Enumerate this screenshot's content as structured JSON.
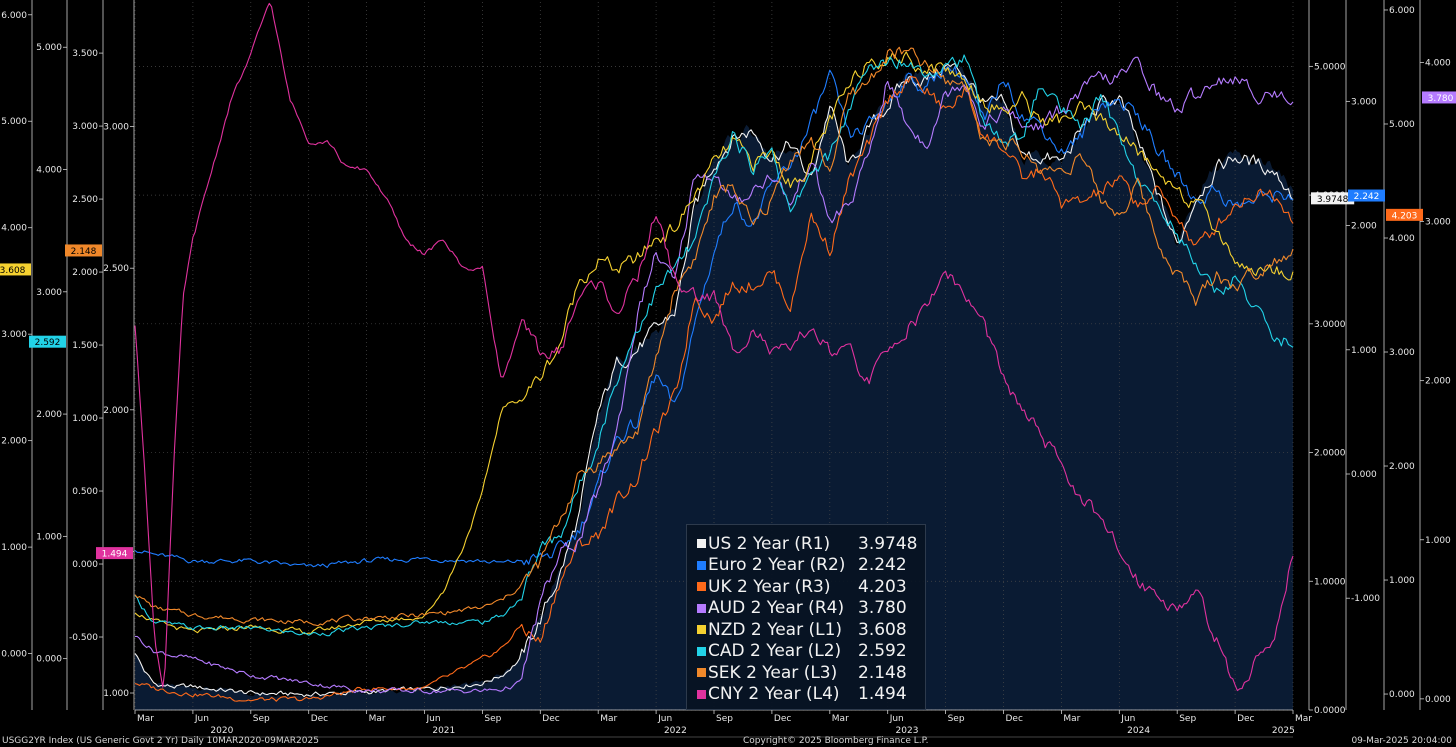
{
  "colors": {
    "background": "#000000",
    "plot_fill": "#0a1b33",
    "grid": "#4a4a4a"
  },
  "footer": {
    "left": "USGG2YR Index (US Generic Govt 2 Yr)  Daily 10MAR2020-09MAR2025",
    "center": "Copyright© 2025 Bloomberg Finance L.P.",
    "right": "09-Mar-2025 20:04:00"
  },
  "chart_data": {
    "type": "line",
    "x_axis": {
      "month_ticks": [
        {
          "label": "Mar",
          "t": 0
        },
        {
          "label": "Jun",
          "t": 3
        },
        {
          "label": "Sep",
          "t": 6
        },
        {
          "label": "Dec",
          "t": 9
        },
        {
          "label": "Mar",
          "t": 12
        },
        {
          "label": "Jun",
          "t": 15
        },
        {
          "label": "Sep",
          "t": 18
        },
        {
          "label": "Dec",
          "t": 21
        },
        {
          "label": "Mar",
          "t": 24
        },
        {
          "label": "Jun",
          "t": 27
        },
        {
          "label": "Sep",
          "t": 30
        },
        {
          "label": "Dec",
          "t": 33
        },
        {
          "label": "Mar",
          "t": 36
        },
        {
          "label": "Jun",
          "t": 39
        },
        {
          "label": "Sep",
          "t": 42
        },
        {
          "label": "Dec",
          "t": 45
        },
        {
          "label": "Mar",
          "t": 48
        },
        {
          "label": "Jun",
          "t": 51
        },
        {
          "label": "Sep",
          "t": 54
        },
        {
          "label": "Dec",
          "t": 57
        },
        {
          "label": "Mar",
          "t": 60
        }
      ],
      "year_ticks": [
        {
          "label": "2020",
          "t": 4.5
        },
        {
          "label": "2021",
          "t": 16
        },
        {
          "label": "2022",
          "t": 28
        },
        {
          "label": "2023",
          "t": 40
        },
        {
          "label": "2024",
          "t": 52
        },
        {
          "label": "2025",
          "t": 59.5
        }
      ],
      "range_t": [
        0,
        60
      ]
    },
    "axes": {
      "R1": {
        "ticks": [
          "0.0000",
          "1.0000",
          "2.0000",
          "3.0000",
          "4.0000",
          "5.0000"
        ],
        "range": [
          0,
          5.5
        ]
      },
      "R2": {
        "ticks": [
          "-1.000",
          "0.000",
          "1.000",
          "2.000",
          "3.000"
        ],
        "range": [
          -1.9,
          3.8
        ]
      },
      "R3": {
        "ticks": [
          "0.000",
          "1.000",
          "2.000",
          "3.000",
          "4.000",
          "5.000",
          "6.000"
        ],
        "range": [
          -0.14,
          6.07
        ]
      },
      "R4": {
        "ticks": [
          "0.000",
          "1.000",
          "2.000",
          "3.000",
          "4.000"
        ],
        "range": [
          -0.07,
          4.38
        ]
      },
      "L1": {
        "ticks": [
          "0.000",
          "1.000",
          "2.000",
          "3.000",
          "4.000",
          "5.000",
          "6.000"
        ],
        "range": [
          -0.53,
          6.12
        ]
      },
      "L2": {
        "ticks": [
          "0.000",
          "1.000",
          "2.000",
          "3.000",
          "4.000",
          "5.000"
        ],
        "range": [
          -0.42,
          5.37
        ]
      },
      "L3": {
        "ticks": [
          "-0.500",
          "0.000",
          "0.500",
          "1.000",
          "1.500",
          "2.000",
          "2.500",
          "3.000",
          "3.500"
        ],
        "range": [
          -1.0,
          3.85
        ]
      },
      "L4": {
        "ticks": [
          "1.000",
          "1.500",
          "2.000",
          "2.500",
          "3.000"
        ],
        "range": [
          0.94,
          3.44
        ]
      }
    },
    "series": [
      {
        "name": "US 2 Year (R1)",
        "value": "3.9748",
        "axis": "R1",
        "color": "#f2f2f2",
        "x": [
          0,
          0.5,
          1,
          2,
          3,
          6,
          9,
          12,
          15,
          18,
          19,
          20,
          21,
          22,
          23,
          24,
          25,
          26,
          27,
          28,
          29,
          30,
          31,
          32,
          33,
          34,
          35,
          36,
          37,
          38,
          39,
          40,
          41,
          42,
          43,
          44,
          45,
          46,
          47,
          48,
          49,
          50,
          51,
          52,
          53,
          54,
          55,
          56,
          57,
          58,
          59,
          60
        ],
        "values": [
          0.45,
          0.3,
          0.2,
          0.18,
          0.18,
          0.13,
          0.12,
          0.14,
          0.16,
          0.21,
          0.27,
          0.4,
          0.7,
          1.05,
          1.5,
          2.3,
          2.7,
          2.8,
          2.95,
          3.1,
          3.9,
          4.25,
          4.45,
          4.5,
          4.3,
          4.4,
          4.1,
          4.7,
          4.2,
          4.5,
          4.7,
          4.9,
          4.9,
          5.0,
          4.95,
          4.7,
          4.7,
          4.3,
          4.3,
          4.25,
          4.5,
          4.7,
          4.75,
          4.4,
          4.0,
          3.6,
          4.0,
          4.2,
          4.3,
          4.25,
          4.2,
          4.0
        ]
      },
      {
        "name": "Euro 2 Year (R2)",
        "value": "2.242",
        "axis": "R2",
        "color": "#1f7dff",
        "x": [
          0,
          1,
          3,
          6,
          9,
          12,
          15,
          18,
          19,
          20,
          21,
          22,
          23,
          24,
          25,
          26,
          27,
          28,
          29,
          30,
          31,
          32,
          33,
          34,
          35,
          36,
          37,
          38,
          39,
          40,
          41,
          42,
          43,
          44,
          45,
          46,
          47,
          48,
          49,
          50,
          51,
          52,
          53,
          54,
          55,
          56,
          57,
          58,
          59,
          60
        ],
        "values": [
          -0.6,
          -0.65,
          -0.7,
          -0.7,
          -0.75,
          -0.7,
          -0.68,
          -0.7,
          -0.72,
          -0.7,
          -0.68,
          -0.62,
          -0.45,
          -0.1,
          0.3,
          0.4,
          0.8,
          0.5,
          1.2,
          1.8,
          2.2,
          2.0,
          2.3,
          2.5,
          2.8,
          3.2,
          2.7,
          2.8,
          3.0,
          3.2,
          3.1,
          3.3,
          3.2,
          2.8,
          3.2,
          2.9,
          2.8,
          2.6,
          2.7,
          3.0,
          3.0,
          2.9,
          2.6,
          2.4,
          2.2,
          2.3,
          2.15,
          2.2,
          2.25,
          2.25
        ]
      },
      {
        "name": "UK 2 Year (R3)",
        "value": "4.203",
        "axis": "R3",
        "color": "#ff6a1a",
        "x": [
          0,
          1,
          3,
          6,
          9,
          12,
          15,
          18,
          19,
          20,
          21,
          22,
          23,
          24,
          25,
          26,
          27,
          28,
          29,
          30,
          31,
          32,
          33,
          34,
          35,
          36,
          37,
          38,
          39,
          40,
          41,
          42,
          43,
          44,
          45,
          46,
          47,
          48,
          49,
          50,
          51,
          52,
          53,
          54,
          55,
          56,
          57,
          58,
          59,
          60
        ],
        "values": [
          0.1,
          0.05,
          0.0,
          -0.05,
          -0.05,
          0.05,
          0.05,
          0.3,
          0.4,
          0.6,
          0.45,
          1.0,
          1.3,
          1.4,
          1.7,
          1.9,
          2.3,
          2.6,
          3.5,
          3.3,
          3.6,
          3.6,
          3.7,
          3.4,
          4.2,
          3.9,
          4.5,
          4.8,
          5.2,
          5.4,
          5.3,
          5.1,
          5.3,
          4.9,
          4.8,
          4.5,
          4.6,
          4.3,
          4.3,
          4.4,
          4.5,
          4.3,
          4.4,
          4.2,
          3.9,
          4.1,
          4.3,
          4.4,
          4.4,
          4.2
        ]
      },
      {
        "name": "AUD 2 Year (R4)",
        "value": "3.780",
        "axis": "R4",
        "color": "#b57bff",
        "x": [
          0,
          1,
          3,
          6,
          9,
          12,
          15,
          18,
          19,
          20,
          21,
          22,
          23,
          24,
          25,
          26,
          27,
          28,
          29,
          30,
          31,
          32,
          33,
          34,
          35,
          36,
          37,
          38,
          39,
          40,
          41,
          42,
          43,
          44,
          45,
          46,
          47,
          48,
          49,
          50,
          51,
          52,
          53,
          54,
          55,
          56,
          57,
          58,
          59,
          60
        ],
        "values": [
          0.4,
          0.3,
          0.25,
          0.15,
          0.1,
          0.05,
          0.05,
          0.05,
          0.06,
          0.1,
          0.6,
          0.9,
          1.0,
          1.3,
          1.7,
          2.4,
          2.8,
          2.6,
          3.3,
          3.3,
          3.1,
          3.2,
          3.3,
          3.1,
          3.4,
          3.0,
          3.1,
          3.4,
          3.9,
          3.6,
          3.5,
          3.8,
          3.9,
          3.6,
          3.7,
          3.6,
          3.6,
          3.7,
          3.8,
          3.9,
          3.9,
          4.0,
          3.8,
          3.7,
          3.8,
          3.9,
          3.9,
          3.8,
          3.8,
          3.78
        ]
      },
      {
        "name": "NZD 2 Year (L1)",
        "value": "3.608",
        "axis": "L1",
        "color": "#f5d130",
        "x": [
          0,
          1,
          3,
          6,
          9,
          12,
          15,
          16,
          17,
          18,
          19,
          20,
          21,
          22,
          23,
          24,
          25,
          26,
          27,
          28,
          29,
          30,
          31,
          32,
          33,
          34,
          35,
          36,
          37,
          38,
          39,
          40,
          41,
          42,
          43,
          44,
          45,
          46,
          47,
          48,
          49,
          50,
          51,
          52,
          53,
          54,
          55,
          56,
          57,
          58,
          59,
          60
        ],
        "values": [
          0.4,
          0.3,
          0.2,
          0.25,
          0.2,
          0.3,
          0.35,
          0.6,
          1.0,
          1.5,
          2.3,
          2.4,
          2.6,
          2.9,
          3.5,
          3.7,
          3.6,
          3.7,
          3.9,
          4.0,
          4.3,
          4.6,
          4.8,
          4.6,
          4.7,
          4.4,
          4.6,
          5.0,
          5.3,
          5.6,
          5.6,
          5.6,
          5.5,
          5.5,
          5.4,
          5.2,
          5.1,
          5.2,
          5.0,
          5.0,
          5.1,
          5.0,
          4.9,
          4.7,
          4.5,
          4.4,
          4.2,
          4.0,
          3.7,
          3.6,
          3.6,
          3.6
        ]
      },
      {
        "name": "CAD 2 Year (L2)",
        "value": "2.592",
        "axis": "L2",
        "color": "#22d3e8",
        "x": [
          0,
          1,
          3,
          6,
          9,
          12,
          15,
          18,
          19,
          20,
          21,
          22,
          23,
          24,
          25,
          26,
          27,
          28,
          29,
          30,
          31,
          32,
          33,
          34,
          35,
          36,
          37,
          38,
          39,
          40,
          41,
          42,
          43,
          44,
          45,
          46,
          47,
          48,
          49,
          50,
          51,
          52,
          53,
          54,
          55,
          56,
          57,
          58,
          59,
          60
        ],
        "values": [
          0.5,
          0.3,
          0.25,
          0.25,
          0.2,
          0.25,
          0.3,
          0.3,
          0.35,
          0.5,
          0.9,
          1.0,
          1.4,
          1.8,
          2.3,
          2.7,
          3.0,
          3.2,
          3.4,
          3.9,
          4.3,
          4.0,
          4.2,
          3.6,
          4.0,
          4.1,
          4.5,
          4.8,
          4.9,
          4.9,
          4.8,
          4.9,
          4.9,
          4.4,
          4.2,
          4.3,
          4.7,
          4.5,
          4.3,
          4.6,
          4.3,
          3.9,
          3.7,
          3.5,
          3.2,
          3.0,
          3.1,
          2.9,
          2.6,
          2.6
        ]
      },
      {
        "name": "SEK 2 Year (L3)",
        "value": "2.148",
        "axis": "L3",
        "color": "#f0882a",
        "x": [
          0,
          1,
          3,
          6,
          9,
          12,
          15,
          18,
          19,
          20,
          21,
          22,
          23,
          24,
          25,
          26,
          27,
          28,
          29,
          30,
          31,
          32,
          33,
          34,
          35,
          36,
          37,
          38,
          39,
          40,
          41,
          42,
          43,
          44,
          45,
          46,
          47,
          48,
          49,
          50,
          51,
          52,
          53,
          54,
          55,
          56,
          57,
          58,
          59,
          60
        ],
        "values": [
          -0.2,
          -0.3,
          -0.35,
          -0.38,
          -0.4,
          -0.37,
          -0.35,
          -0.3,
          -0.25,
          -0.15,
          0.0,
          0.3,
          0.6,
          0.7,
          0.8,
          0.9,
          1.4,
          1.9,
          2.1,
          2.5,
          2.6,
          2.3,
          2.5,
          2.8,
          2.9,
          2.7,
          3.2,
          3.3,
          3.5,
          3.5,
          3.4,
          3.3,
          3.3,
          2.9,
          2.9,
          2.8,
          2.7,
          2.7,
          2.8,
          2.5,
          2.4,
          2.6,
          2.2,
          2.0,
          1.8,
          2.0,
          1.9,
          2.0,
          2.1,
          2.15
        ]
      },
      {
        "name": "CNY 2 Year (L4)",
        "value": "1.494",
        "axis": "L4",
        "color": "#e0329e",
        "x": [
          0,
          0.5,
          1,
          1.5,
          2,
          2.5,
          3,
          4,
          5,
          6,
          7,
          8,
          9,
          10,
          11,
          12,
          13,
          14,
          15,
          16,
          17,
          18,
          19,
          20,
          21,
          22,
          23,
          24,
          25,
          26,
          27,
          28,
          29,
          30,
          31,
          32,
          33,
          34,
          35,
          36,
          37,
          38,
          39,
          40,
          41,
          42,
          43,
          44,
          45,
          46,
          47,
          48,
          49,
          50,
          51,
          52,
          53,
          54,
          55,
          56,
          57,
          58,
          59,
          60
        ],
        "values": [
          2.3,
          1.8,
          1.2,
          1.0,
          1.8,
          2.4,
          2.6,
          2.85,
          3.1,
          3.25,
          3.45,
          3.1,
          2.95,
          2.95,
          2.85,
          2.85,
          2.75,
          2.6,
          2.55,
          2.6,
          2.5,
          2.5,
          2.1,
          2.3,
          2.2,
          2.2,
          2.4,
          2.45,
          2.35,
          2.45,
          2.7,
          2.45,
          2.4,
          2.4,
          2.2,
          2.3,
          2.2,
          2.2,
          2.3,
          2.2,
          2.2,
          2.1,
          2.2,
          2.3,
          2.35,
          2.5,
          2.4,
          2.3,
          2.1,
          2.0,
          1.9,
          1.8,
          1.7,
          1.6,
          1.5,
          1.4,
          1.35,
          1.3,
          1.35,
          1.2,
          1.0,
          1.1,
          1.2,
          1.5
        ]
      }
    ],
    "fill_series": "US 2 Year (R1)",
    "grid": true,
    "legend_position": "bottom-center"
  }
}
